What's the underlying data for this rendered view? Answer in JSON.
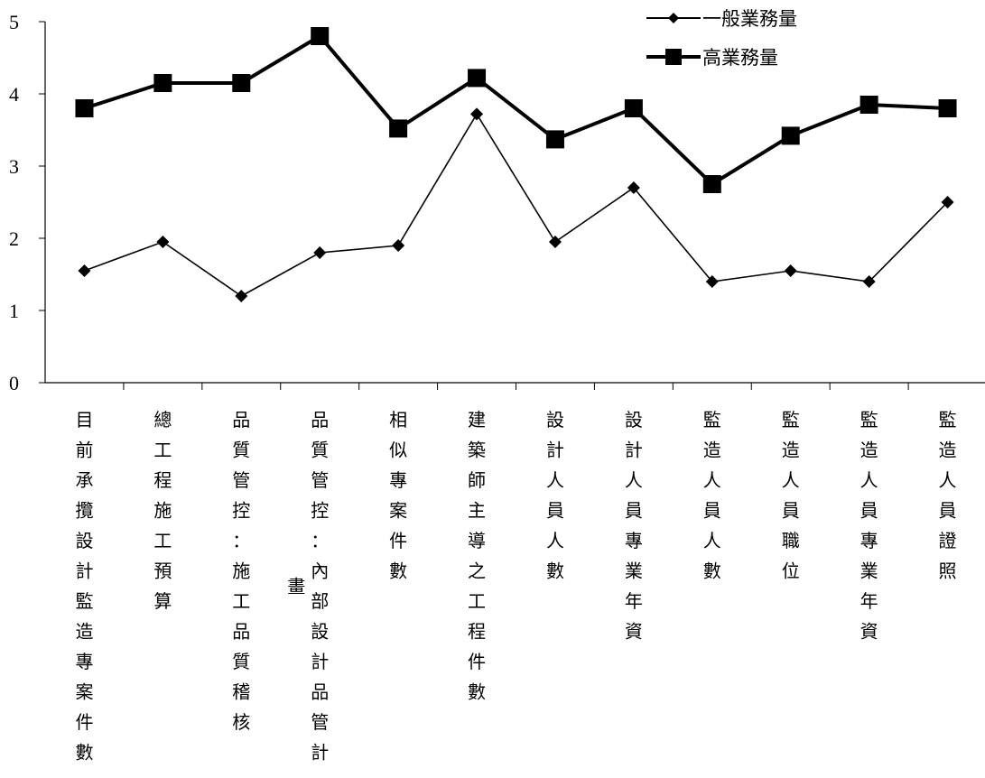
{
  "chart_data": {
    "type": "line",
    "categories": [
      "目前承攬設計監造專案件數",
      "總工程施工預算",
      "品質管控：施工品質稽核",
      "品質管控：內部設計品管計畫",
      "相似專案件數",
      "建築師主導之工程件數",
      "設計人員人數",
      "設計人員專業年資",
      "監造人員人數",
      "監造人員職位",
      "監造人員專業年資",
      "監造人員證照"
    ],
    "series": [
      {
        "name": "一般業務量",
        "marker": "diamond",
        "color": "#000000",
        "values": [
          1.55,
          1.95,
          1.2,
          1.8,
          1.9,
          3.72,
          1.95,
          2.7,
          1.4,
          1.55,
          1.4,
          2.5
        ]
      },
      {
        "name": "高業務量",
        "marker": "square",
        "color": "#000000",
        "values": [
          3.8,
          4.15,
          4.15,
          4.8,
          3.52,
          4.22,
          3.37,
          3.8,
          2.75,
          3.42,
          3.85,
          3.8
        ]
      }
    ],
    "yticks": [
      "0",
      "1",
      "2",
      "3",
      "4",
      "5"
    ],
    "ylim": [
      0,
      5
    ],
    "grid": false,
    "legend_position": "top-right"
  }
}
